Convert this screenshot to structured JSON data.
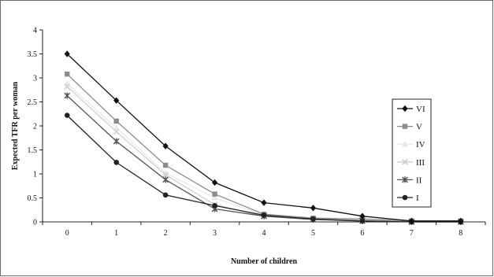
{
  "chart_data": {
    "type": "line",
    "title": "",
    "xlabel": "Number of children",
    "ylabel": "Expected TFR per woman",
    "x": [
      0,
      1,
      2,
      3,
      4,
      5,
      6,
      7,
      8
    ],
    "ylim": [
      0,
      4
    ],
    "yticks": [
      0,
      0.5,
      1,
      1.5,
      2,
      2.5,
      3,
      3.5,
      4
    ],
    "grid": false,
    "legend": "right",
    "series": [
      {
        "name": "VI",
        "marker": "diamond",
        "color": "#111111",
        "values": [
          3.5,
          2.53,
          1.58,
          0.82,
          0.4,
          0.29,
          0.12,
          0.02,
          0.02
        ]
      },
      {
        "name": "V",
        "marker": "square",
        "color": "#8c8c8c",
        "values": [
          3.08,
          2.1,
          1.18,
          0.58,
          0.16,
          0.08,
          0.06,
          0.02,
          0.02
        ]
      },
      {
        "name": "IV",
        "marker": "triangle",
        "color": "#e8e8e8",
        "values": [
          2.88,
          1.96,
          1.02,
          0.5,
          0.14,
          0.06,
          0.04,
          0.01,
          0.01
        ]
      },
      {
        "name": "III",
        "marker": "x",
        "color": "#cfcfcf",
        "values": [
          2.82,
          1.88,
          0.98,
          0.36,
          0.12,
          0.05,
          0.03,
          0.01,
          0.01
        ]
      },
      {
        "name": "II",
        "marker": "star",
        "color": "#555555",
        "values": [
          2.63,
          1.68,
          0.88,
          0.27,
          0.12,
          0.05,
          0.02,
          0.0,
          0.0
        ]
      },
      {
        "name": "I",
        "marker": "circle",
        "color": "#222222",
        "values": [
          2.22,
          1.24,
          0.56,
          0.34,
          0.14,
          0.06,
          0.02,
          0.0,
          0.0
        ]
      }
    ]
  }
}
